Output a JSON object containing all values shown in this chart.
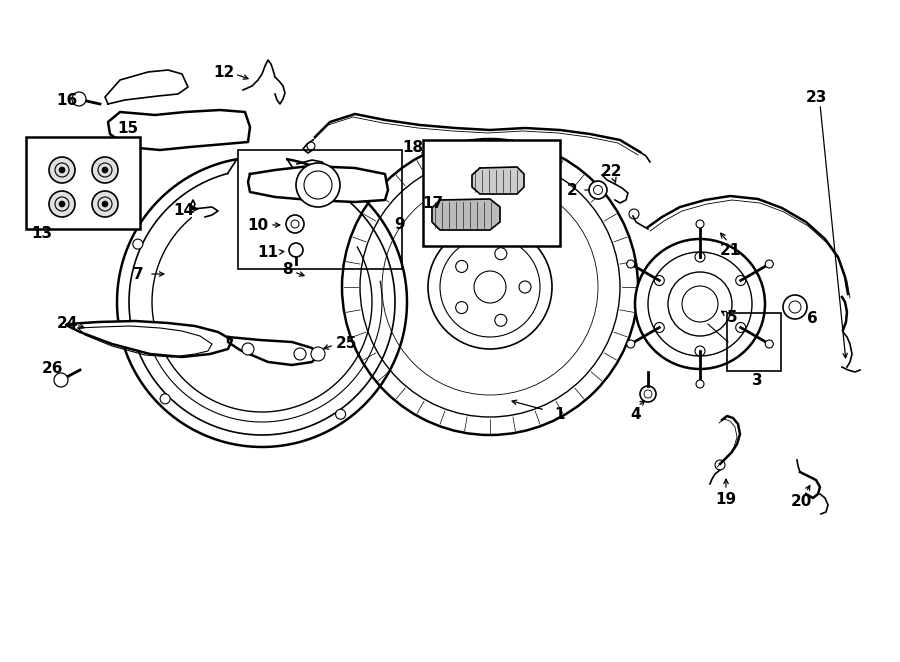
{
  "bg_color": "#ffffff",
  "line_color": "#000000",
  "figsize": [
    9.0,
    6.62
  ],
  "dpi": 100
}
